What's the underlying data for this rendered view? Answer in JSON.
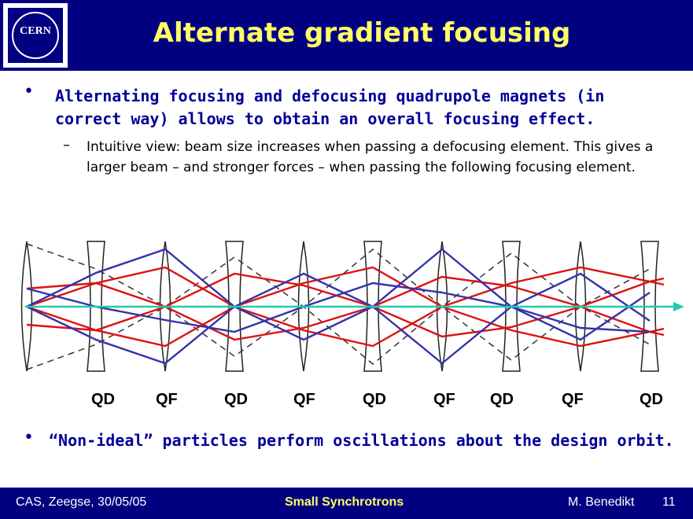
{
  "header": {
    "title": "Alternate gradient focusing",
    "logo_text": "CERN"
  },
  "bullets": {
    "main": "Alternating focusing and defocusing quadrupole magnets (in correct way) allows to obtain an overall focusing effect.",
    "sub_marker": "–",
    "sub": "Intuitive view: beam size increases when passing a defocusing element. This gives a larger beam – and stronger forces – when passing the following focusing element.",
    "second": "“Non-ideal” particles perform oscillations about the design orbit."
  },
  "diagram": {
    "labels": [
      "QD",
      "QF",
      "QD",
      "QF",
      "QD",
      "QF",
      "QD",
      "QF",
      "QD"
    ],
    "colors": {
      "red_ray": "#dd1111",
      "blue_ray": "#3333aa",
      "orbit": "#22ccaa",
      "dashed": "#333333",
      "lens": "#222222"
    }
  },
  "footer": {
    "left": "CAS, Zeegse,  30/05/05",
    "center": "Small Synchrotrons",
    "right": "M. Benedikt",
    "page": "11"
  }
}
